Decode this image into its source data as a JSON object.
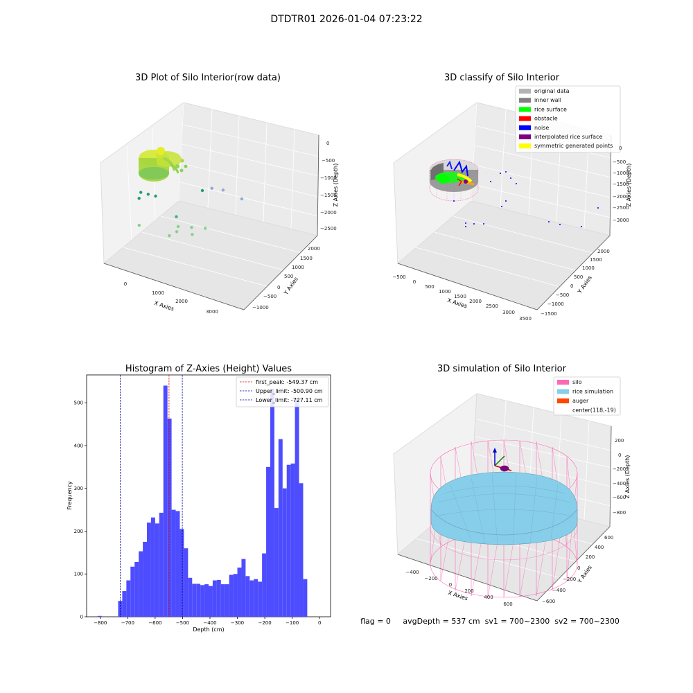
{
  "figure": {
    "suptitle": "DTDTR01 2026-01-04 07:23:22",
    "status_line": "flag = 0     avgDepth = 537 cm  sv1 = 700~2300  sv2 = 700~2300"
  },
  "chart_data": [
    {
      "type": "scatter",
      "projection": "3d",
      "title": "3D Plot of Silo Interior(row data)",
      "xlabel": "X Axies",
      "ylabel": "Y Axies",
      "zlabel": "Z Axies (Depth)",
      "x_ticks": [
        "0",
        "1000",
        "2000",
        "3000"
      ],
      "y_ticks": [
        "−1000",
        "−500",
        "0",
        "500",
        "1000",
        "1500",
        "2000"
      ],
      "z_ticks": [
        "0",
        "−500",
        "−1000",
        "−1500",
        "−2000",
        "−2500"
      ],
      "grid": true,
      "colormap": "viridis",
      "points": [
        {
          "x": 3200,
          "y": 1500,
          "z": -1950
        },
        {
          "x": 3100,
          "y": 600,
          "z": -2600
        },
        {
          "x": 2700,
          "y": 600,
          "z": -2550
        },
        {
          "x": 2300,
          "y": 700,
          "z": -2350
        },
        {
          "x": 1200,
          "y": -200,
          "z": -2400
        },
        {
          "x": 1000,
          "y": -300,
          "z": -2450
        },
        {
          "x": 800,
          "y": -500,
          "z": -2400
        },
        {
          "x": 800,
          "y": -400,
          "z": -2500
        },
        {
          "x": 1900,
          "y": 1500,
          "z": -900
        },
        {
          "x": 1600,
          "y": 1200,
          "z": -1000
        },
        {
          "x": 1500,
          "y": 1400,
          "z": -700
        },
        {
          "x": 1200,
          "y": 1000,
          "z": -900
        },
        {
          "x": 1000,
          "y": 900,
          "z": -800
        },
        {
          "x": 1500,
          "y": 500,
          "z": -1600
        },
        {
          "x": 1500,
          "y": 600,
          "z": -1300
        },
        {
          "x": 300,
          "y": 300,
          "z": -1200
        }
      ]
    },
    {
      "type": "scatter",
      "projection": "3d",
      "title": "3D classify of Silo Interior",
      "xlabel": "X Axies",
      "ylabel": "Y Axies",
      "zlabel": "Z Axies (Depth)",
      "x_ticks": [
        "−500",
        "0",
        "500",
        "1000",
        "1500",
        "2000",
        "2500",
        "3000",
        "3500"
      ],
      "y_ticks": [
        "−1500",
        "−1000",
        "−500",
        "0",
        "500",
        "1000",
        "1500",
        "2000"
      ],
      "z_ticks": [
        "0",
        "−500",
        "−1000",
        "−1500",
        "−2000",
        "−2500",
        "−3000"
      ],
      "grid": true,
      "legend_position": "top-right",
      "legend": [
        {
          "label": "original data",
          "color": "#b3b3b3"
        },
        {
          "label": "inner wall",
          "color": "#808080"
        },
        {
          "label": "rice surface",
          "color": "#00ff00"
        },
        {
          "label": "obstacle",
          "color": "#ff0000"
        },
        {
          "label": "noise",
          "color": "#0000ff"
        },
        {
          "label": "interpolated rice surface",
          "color": "#800080"
        },
        {
          "label": "symmetric generated points",
          "color": "#ffff00"
        }
      ]
    },
    {
      "type": "bar",
      "title": "Histogram of Z-Axies (Height) Values",
      "xlabel": "Depth (cm)",
      "ylabel": "Frequency",
      "xlim": [
        -850,
        40
      ],
      "ylim": [
        0,
        565
      ],
      "x_ticks": [
        -800,
        -700,
        -600,
        -500,
        -400,
        -300,
        -200,
        -100,
        0
      ],
      "y_ticks": [
        0,
        100,
        200,
        300,
        400,
        500
      ],
      "bin_width": 15,
      "bar_color": "#4d4dff",
      "bins": [
        {
          "left": -810,
          "count": 2
        },
        {
          "left": -735,
          "count": 37
        },
        {
          "left": -720,
          "count": 60
        },
        {
          "left": -705,
          "count": 85
        },
        {
          "left": -690,
          "count": 117
        },
        {
          "left": -675,
          "count": 128
        },
        {
          "left": -660,
          "count": 153
        },
        {
          "left": -645,
          "count": 175
        },
        {
          "left": -630,
          "count": 220
        },
        {
          "left": -615,
          "count": 232
        },
        {
          "left": -600,
          "count": 218
        },
        {
          "left": -585,
          "count": 243
        },
        {
          "left": -570,
          "count": 540
        },
        {
          "left": -555,
          "count": 463
        },
        {
          "left": -540,
          "count": 250
        },
        {
          "left": -525,
          "count": 247
        },
        {
          "left": -510,
          "count": 205
        },
        {
          "left": -495,
          "count": 160
        },
        {
          "left": -480,
          "count": 91
        },
        {
          "left": -465,
          "count": 77
        },
        {
          "left": -450,
          "count": 77
        },
        {
          "left": -435,
          "count": 74
        },
        {
          "left": -420,
          "count": 76
        },
        {
          "left": -405,
          "count": 72
        },
        {
          "left": -390,
          "count": 85
        },
        {
          "left": -375,
          "count": 86
        },
        {
          "left": -360,
          "count": 76
        },
        {
          "left": -345,
          "count": 76
        },
        {
          "left": -330,
          "count": 98
        },
        {
          "left": -315,
          "count": 100
        },
        {
          "left": -300,
          "count": 115
        },
        {
          "left": -285,
          "count": 135
        },
        {
          "left": -270,
          "count": 95
        },
        {
          "left": -255,
          "count": 85
        },
        {
          "left": -240,
          "count": 88
        },
        {
          "left": -225,
          "count": 82
        },
        {
          "left": -210,
          "count": 148
        },
        {
          "left": -195,
          "count": 350
        },
        {
          "left": -180,
          "count": 532
        },
        {
          "left": -165,
          "count": 254
        },
        {
          "left": -150,
          "count": 415
        },
        {
          "left": -135,
          "count": 300
        },
        {
          "left": -120,
          "count": 355
        },
        {
          "left": -105,
          "count": 358
        },
        {
          "left": -90,
          "count": 510
        },
        {
          "left": -75,
          "count": 312
        },
        {
          "left": -60,
          "count": 88
        }
      ],
      "reference_lines": [
        {
          "x": -549.37,
          "color": "#e00000",
          "label": "first_peak: -549.37 cm"
        },
        {
          "x": -500.9,
          "color": "#0000a0",
          "label": "Upper_limit: -500.90 cm"
        },
        {
          "x": -727.11,
          "color": "#0000a0",
          "label": "Lower_limit: -727.11 cm"
        }
      ],
      "legend_position": "top-right"
    },
    {
      "type": "surface",
      "projection": "3d",
      "title": "3D simulation of Silo Interior",
      "xlabel": "X Axies",
      "ylabel": "Y Axies",
      "zlabel": "Z Axies (Depth)",
      "x_ticks": [
        "−400",
        "−200",
        "0",
        "200",
        "400",
        "600"
      ],
      "y_ticks": [
        "−600",
        "−400",
        "−200",
        "0",
        "200",
        "400",
        "600"
      ],
      "z_ticks": [
        "200",
        "0",
        "−200",
        "−400",
        "−600",
        "−800"
      ],
      "grid": true,
      "legend_position": "top-right",
      "legend": [
        {
          "label": "silo",
          "color": "#ff69b4"
        },
        {
          "label": "rice simulation",
          "color": "#87ceeb"
        },
        {
          "label": "auger",
          "color": "#ff4500"
        },
        {
          "label": "center(118,-19)",
          "color": "none"
        }
      ]
    }
  ]
}
